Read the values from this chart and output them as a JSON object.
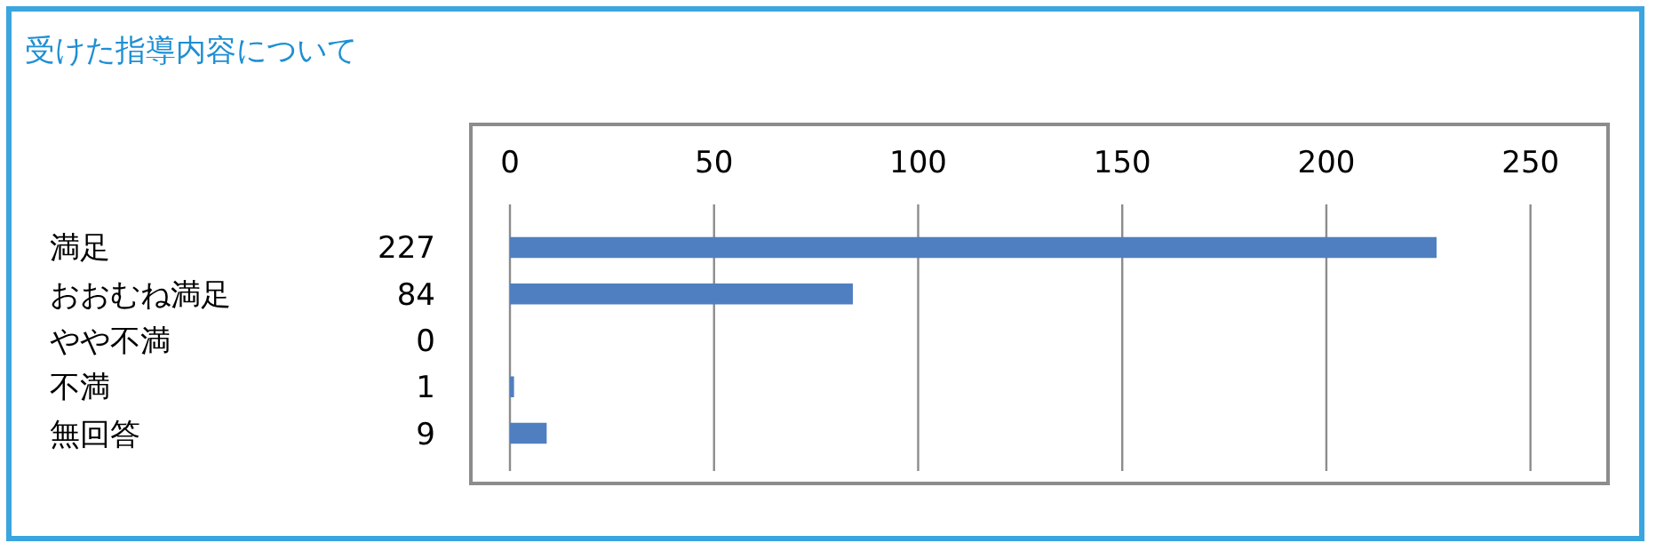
{
  "chart_data": {
    "type": "bar",
    "orientation": "horizontal",
    "title": "受けた指導内容について",
    "categories": [
      "満足",
      "おおむね満足",
      "やや不満",
      "不満",
      "無回答"
    ],
    "values": [
      227,
      84,
      0,
      1,
      9
    ],
    "color": "#4f7fc0",
    "x2lim": [
      0,
      269
    ],
    "x2ticks": [
      0,
      50,
      100,
      150,
      200,
      250
    ],
    "grid": "x",
    "data_labels": true
  }
}
